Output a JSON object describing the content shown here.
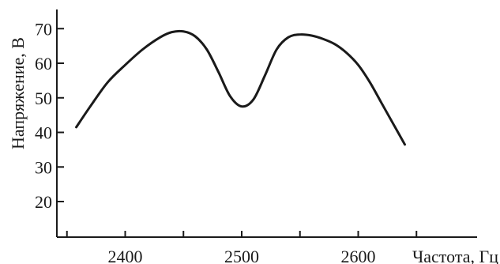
{
  "chart_data": {
    "type": "line",
    "title": "",
    "xlabel": "Частота, Гц",
    "ylabel": "Напряжение, В",
    "xlim": [
      2335,
      2640
    ],
    "ylim": [
      10,
      75
    ],
    "x_ticks": [
      2350,
      2400,
      2450,
      2500,
      2550,
      2600,
      2650
    ],
    "x_tick_labels": [
      "2400",
      "2500",
      "2600"
    ],
    "x_tick_label_values": [
      2400,
      2500,
      2600
    ],
    "y_ticks": [
      20,
      30,
      40,
      50,
      60,
      70
    ],
    "y_tick_labels": [
      "20",
      "30",
      "40",
      "50",
      "60",
      "70"
    ],
    "grid": false,
    "legend": "none",
    "color": "#1a1a1a",
    "series": [
      {
        "x": [
          2358,
          2370,
          2385,
          2400,
          2415,
          2430,
          2440,
          2450,
          2460,
          2470,
          2480,
          2490,
          2500,
          2510,
          2520,
          2530,
          2540,
          2550,
          2560,
          2570,
          2580,
          2590,
          2600,
          2610,
          2620,
          2630,
          2640
        ],
        "y": [
          41.5,
          47.5,
          54.5,
          59.5,
          64.0,
          67.5,
          69.0,
          69.2,
          67.8,
          64.0,
          57.5,
          50.5,
          47.5,
          49.5,
          56.5,
          64.0,
          67.5,
          68.3,
          68.0,
          67.0,
          65.5,
          63.0,
          59.5,
          54.5,
          48.5,
          42.5,
          36.5
        ]
      }
    ]
  }
}
